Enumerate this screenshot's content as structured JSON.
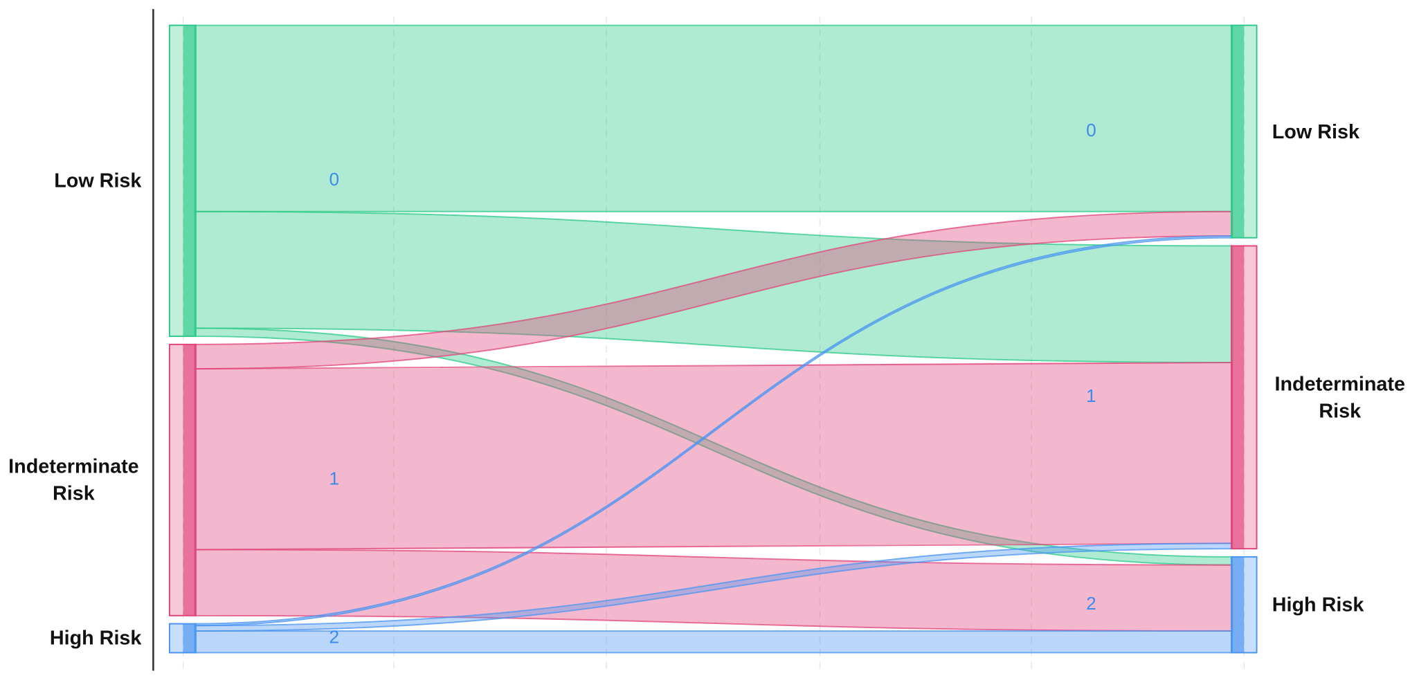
{
  "chart_data": {
    "type": "sankey",
    "left_nodes": [
      {
        "label": "Low Risk",
        "id": "0",
        "color": "#2ec98a"
      },
      {
        "label": "Indeterminate Risk",
        "id": "1",
        "color": "#e0457b"
      },
      {
        "label": "High Risk",
        "id": "2",
        "color": "#4a94f2"
      }
    ],
    "right_nodes": [
      {
        "label": "Low Risk",
        "id": "0",
        "color": "#2ec98a"
      },
      {
        "label": "Indeterminate Risk",
        "id": "1",
        "color": "#e0457b"
      },
      {
        "label": "High Risk",
        "id": "2",
        "color": "#4a94f2"
      }
    ],
    "flows": [
      {
        "source": 0,
        "target": 0,
        "value": 206
      },
      {
        "source": 0,
        "target": 1,
        "value": 129
      },
      {
        "source": 0,
        "target": 2,
        "value": 9
      },
      {
        "source": 1,
        "target": 0,
        "value": 27
      },
      {
        "source": 1,
        "target": 1,
        "value": 200
      },
      {
        "source": 1,
        "target": 2,
        "value": 73
      },
      {
        "source": 2,
        "target": 0,
        "value": 2
      },
      {
        "source": 2,
        "target": 1,
        "value": 6
      },
      {
        "source": 2,
        "target": 2,
        "value": 24
      }
    ]
  }
}
